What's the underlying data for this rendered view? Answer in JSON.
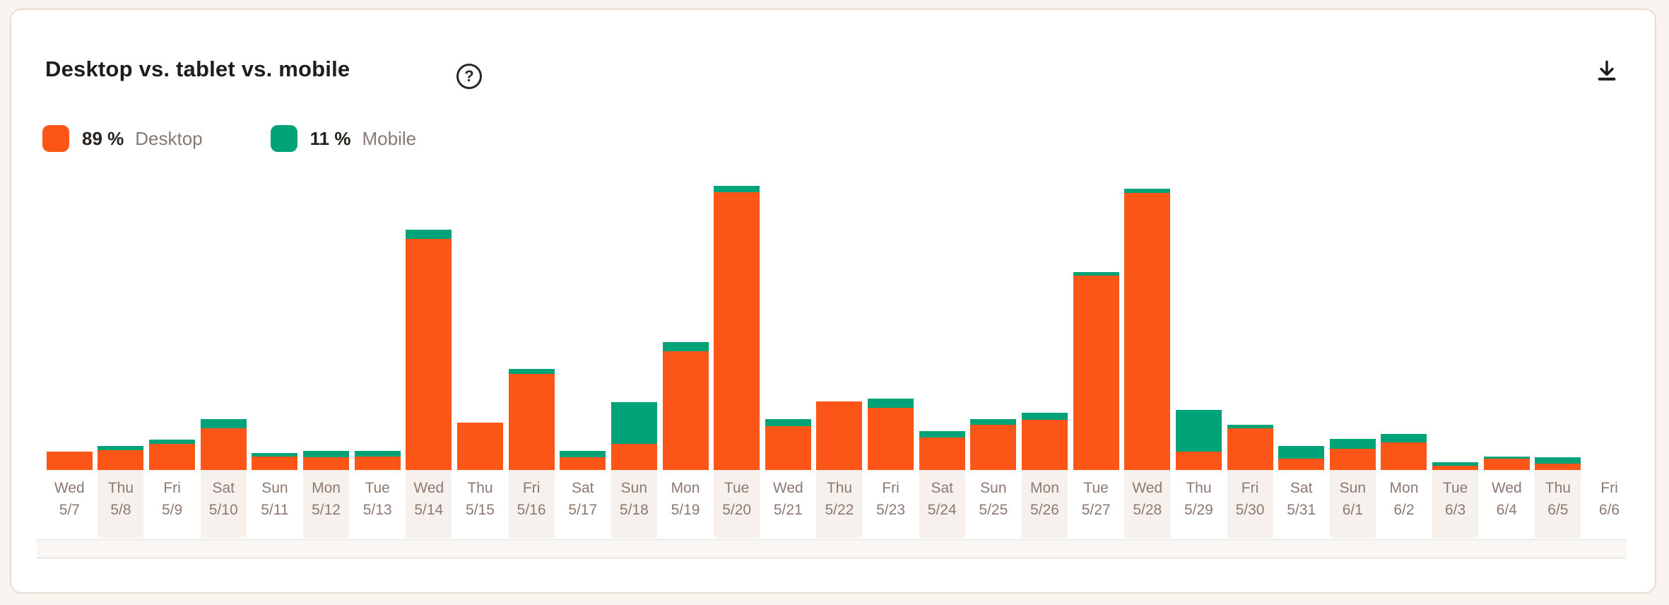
{
  "page": {
    "background": "#f9f4ef"
  },
  "card": {
    "title": "Desktop vs. tablet vs. mobile",
    "icons": {
      "help": "question-mark-circle-icon",
      "download": "download-icon"
    },
    "legend": [
      {
        "value": "89 %",
        "label": "Desktop",
        "color": "#fb5517"
      },
      {
        "value": "11 %",
        "label": "Mobile",
        "color": "#00a377"
      }
    ]
  },
  "chart_data": {
    "type": "bar",
    "stacked": true,
    "title": "Desktop vs. tablet vs. mobile",
    "grid": false,
    "y_axis_visible": false,
    "legend_position": "top-left",
    "units": "relative height units estimated from bar pixel heights (chart shows no numeric y-axis); overall split is Desktop 89 % / Mobile 11 %",
    "categories": [
      {
        "day": "Wed",
        "date": "5/7"
      },
      {
        "day": "Thu",
        "date": "5/8"
      },
      {
        "day": "Fri",
        "date": "5/9"
      },
      {
        "day": "Sat",
        "date": "5/10"
      },
      {
        "day": "Sun",
        "date": "5/11"
      },
      {
        "day": "Mon",
        "date": "5/12"
      },
      {
        "day": "Tue",
        "date": "5/13"
      },
      {
        "day": "Wed",
        "date": "5/14"
      },
      {
        "day": "Thu",
        "date": "5/15"
      },
      {
        "day": "Fri",
        "date": "5/16"
      },
      {
        "day": "Sat",
        "date": "5/17"
      },
      {
        "day": "Sun",
        "date": "5/18"
      },
      {
        "day": "Mon",
        "date": "5/19"
      },
      {
        "day": "Tue",
        "date": "5/20"
      },
      {
        "day": "Wed",
        "date": "5/21"
      },
      {
        "day": "Thu",
        "date": "5/22"
      },
      {
        "day": "Fri",
        "date": "5/23"
      },
      {
        "day": "Sat",
        "date": "5/24"
      },
      {
        "day": "Sun",
        "date": "5/25"
      },
      {
        "day": "Mon",
        "date": "5/26"
      },
      {
        "day": "Tue",
        "date": "5/27"
      },
      {
        "day": "Wed",
        "date": "5/28"
      },
      {
        "day": "Thu",
        "date": "5/29"
      },
      {
        "day": "Fri",
        "date": "5/30"
      },
      {
        "day": "Sat",
        "date": "5/31"
      },
      {
        "day": "Sun",
        "date": "6/1"
      },
      {
        "day": "Mon",
        "date": "6/2"
      },
      {
        "day": "Tue",
        "date": "6/3"
      },
      {
        "day": "Wed",
        "date": "6/4"
      },
      {
        "day": "Thu",
        "date": "6/5"
      },
      {
        "day": "Fri",
        "date": "6/6"
      }
    ],
    "series": [
      {
        "name": "Desktop",
        "color": "#fb5517",
        "values": [
          26,
          28,
          37,
          59,
          19,
          18,
          19,
          327,
          67,
          136,
          18,
          37,
          168,
          393,
          62,
          97,
          88,
          46,
          64,
          71,
          275,
          392,
          26,
          59,
          16,
          30,
          39,
          6,
          16,
          9,
          0
        ]
      },
      {
        "name": "Mobile",
        "color": "#00a377",
        "values": [
          0,
          6,
          6,
          13,
          5,
          9,
          8,
          13,
          0,
          7,
          9,
          59,
          13,
          9,
          10,
          0,
          13,
          9,
          8,
          10,
          5,
          6,
          59,
          5,
          18,
          14,
          12,
          5,
          3,
          9,
          0
        ]
      }
    ]
  }
}
